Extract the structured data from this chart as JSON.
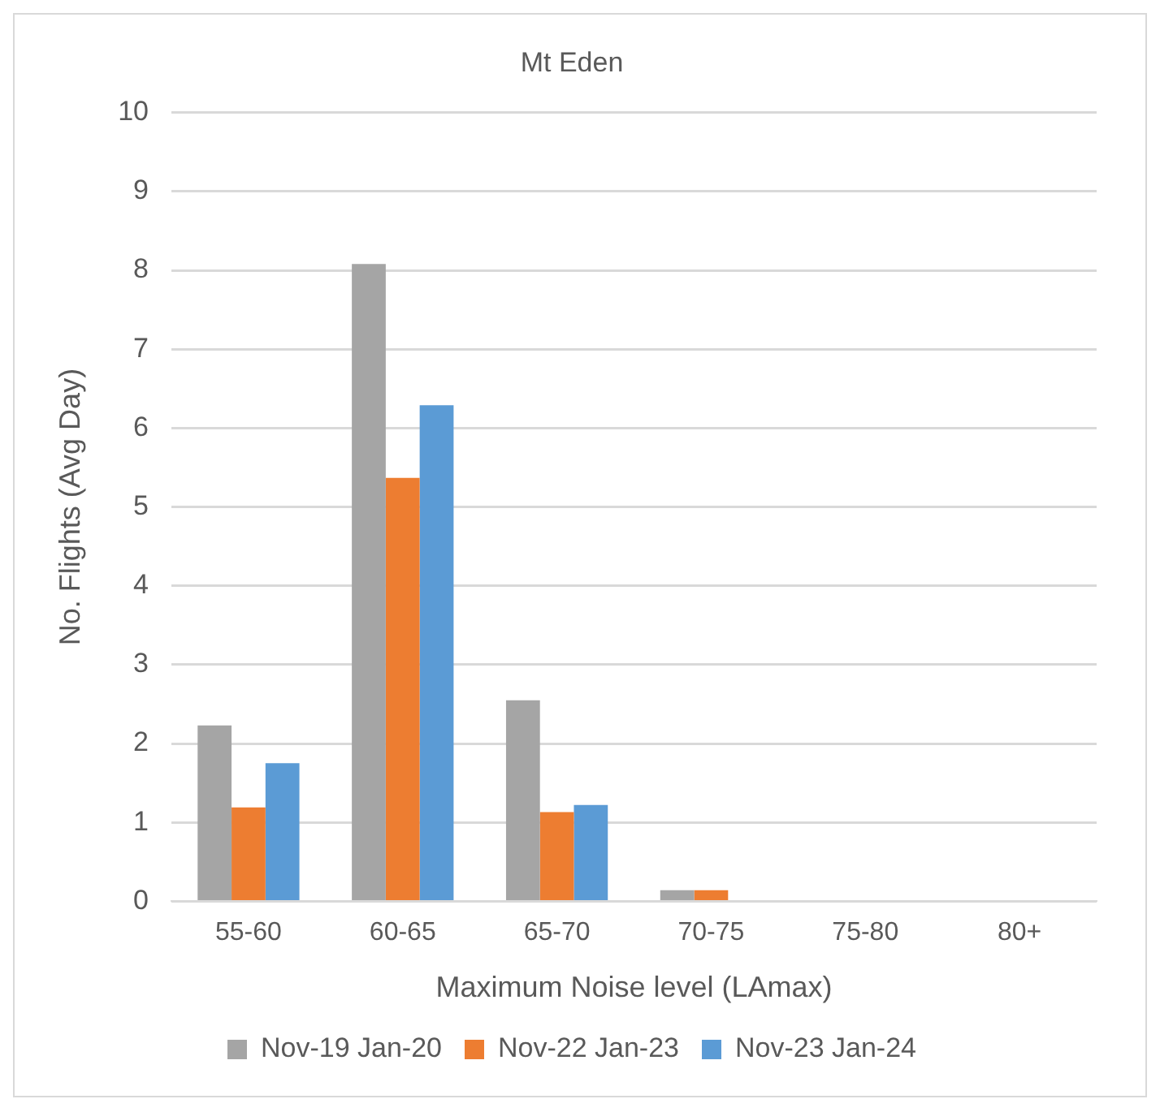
{
  "chart_data": {
    "type": "bar",
    "title": "Mt Eden",
    "xlabel": "Maximum Noise level (LAmax)",
    "ylabel": "No. Flights (Avg Day)",
    "categories": [
      "55-60",
      "60-65",
      "65-70",
      "70-75",
      "75-80",
      "80+"
    ],
    "series": [
      {
        "name": "Nov-19 Jan-20",
        "color": "#a5a5a5",
        "values": [
          2.23,
          8.08,
          2.55,
          0.14,
          0,
          0
        ]
      },
      {
        "name": "Nov-22 Jan-23",
        "color": "#ed7d31",
        "values": [
          1.19,
          5.37,
          1.13,
          0.14,
          0,
          0
        ]
      },
      {
        "name": "Nov-23 Jan-24",
        "color": "#5b9bd5",
        "values": [
          1.75,
          6.29,
          1.22,
          0,
          0,
          0
        ]
      }
    ],
    "ylim": [
      0,
      10
    ],
    "yticks": [
      0,
      1,
      2,
      3,
      4,
      5,
      6,
      7,
      8,
      9,
      10
    ],
    "grid": "y",
    "legend": "bottom"
  }
}
